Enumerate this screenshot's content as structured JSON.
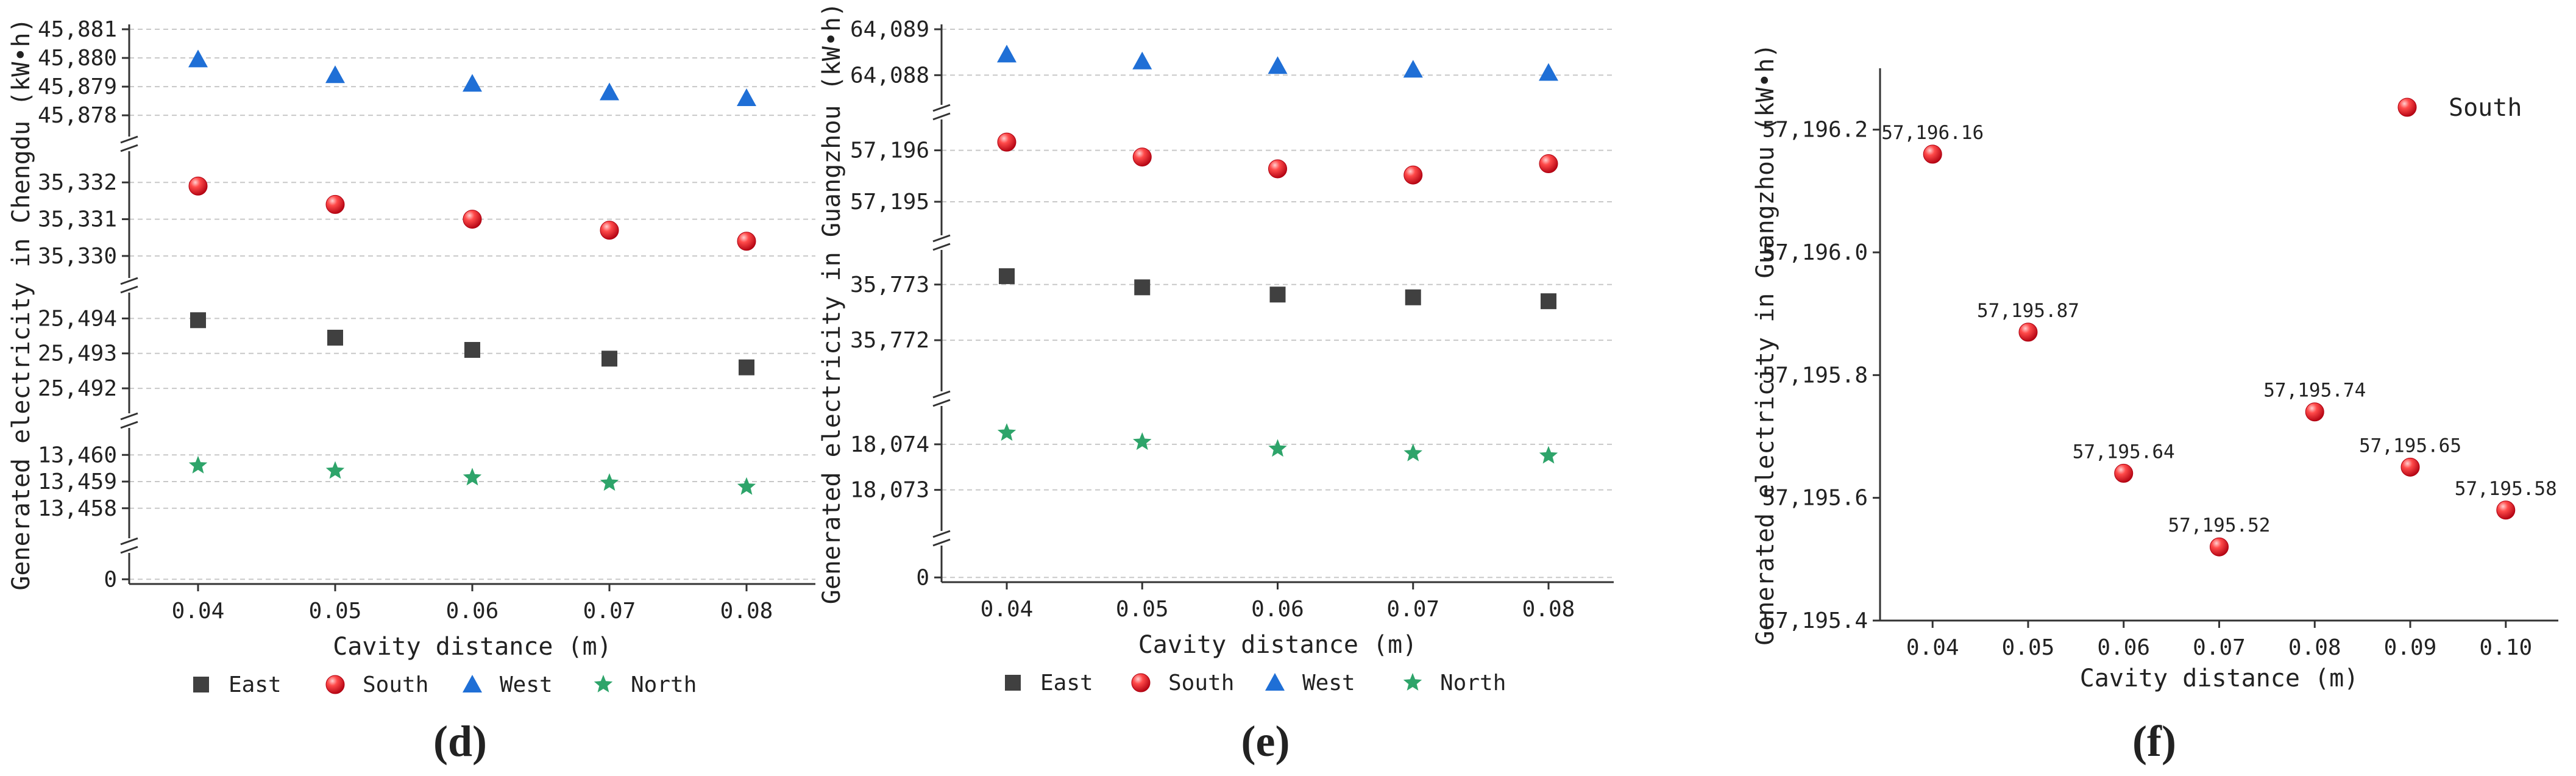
{
  "colors": {
    "east": "#404040",
    "south": "#e8192c",
    "west": "#1f6fd6",
    "north": "#2ea46a",
    "grid": "#c8c8c8",
    "axis": "#333333"
  },
  "legend": {
    "east": "East",
    "south": "South",
    "west": "West",
    "north": "North"
  },
  "chart_data": [
    {
      "panel": "(d)",
      "type": "scatter",
      "broken_axis": true,
      "xlabel": "Cavity distance (m)",
      "ylabel": "Generated electricity in Chengdu (kW•h)",
      "x_ticks": [
        "0.04",
        "0.05",
        "0.06",
        "0.07",
        "0.08"
      ],
      "x": [
        0.04,
        0.05,
        0.06,
        0.07,
        0.08
      ],
      "legend_position": "bottom",
      "series": [
        {
          "name": "East",
          "key": "east",
          "marker": "square",
          "values": [
            25493.95,
            25493.45,
            25493.1,
            25492.85,
            25492.6
          ]
        },
        {
          "name": "South",
          "key": "south",
          "marker": "circle",
          "values": [
            35331.9,
            35331.4,
            35331.0,
            35330.7,
            35330.4
          ]
        },
        {
          "name": "West",
          "key": "west",
          "marker": "triangle",
          "values": [
            45879.95,
            45879.4,
            45879.1,
            45878.8,
            45878.6
          ]
        },
        {
          "name": "North",
          "key": "north",
          "marker": "star",
          "values": [
            13459.6,
            13459.4,
            13459.15,
            13458.95,
            13458.8
          ]
        }
      ],
      "segments": [
        {
          "ticks": [
            "0"
          ],
          "tick_values": [
            0
          ],
          "range": [
            -0.3,
            0.4
          ]
        },
        {
          "ticks": [
            "13,458",
            "13,459",
            "13,460"
          ],
          "tick_values": [
            13458,
            13459,
            13460
          ],
          "range": [
            13457.4,
            13460.6
          ]
        },
        {
          "ticks": [
            "25,492",
            "25,493",
            "25,494"
          ],
          "tick_values": [
            25492,
            25493,
            25494
          ],
          "range": [
            25491.6,
            25494.6
          ]
        },
        {
          "ticks": [
            "35,330",
            "35,331",
            "35,332"
          ],
          "tick_values": [
            35330,
            35331,
            35332
          ],
          "range": [
            35329.7,
            35332.7
          ]
        },
        {
          "ticks": [
            "45,878",
            "45,879",
            "45,880",
            "45,881"
          ],
          "tick_values": [
            45878,
            45879,
            45880,
            45881
          ],
          "range": [
            45877.6,
            45881.0
          ]
        }
      ]
    },
    {
      "panel": "(e)",
      "type": "scatter",
      "broken_axis": true,
      "xlabel": "Cavity distance (m)",
      "ylabel": "Generated electricity in Guangzhou (kW•h)",
      "x_ticks": [
        "0.04",
        "0.05",
        "0.06",
        "0.07",
        "0.08"
      ],
      "x": [
        0.04,
        0.05,
        0.06,
        0.07,
        0.08
      ],
      "legend_position": "bottom",
      "series": [
        {
          "name": "East",
          "key": "east",
          "marker": "square",
          "values": [
            35773.15,
            35772.95,
            35772.82,
            35772.77,
            35772.7
          ]
        },
        {
          "name": "South",
          "key": "south",
          "marker": "circle",
          "values": [
            57196.16,
            57195.87,
            57195.64,
            57195.52,
            57195.74
          ]
        },
        {
          "name": "West",
          "key": "west",
          "marker": "triangle",
          "values": [
            64088.45,
            64088.3,
            64088.2,
            64088.12,
            64088.05
          ]
        },
        {
          "name": "North",
          "key": "north",
          "marker": "star",
          "values": [
            18074.25,
            18074.05,
            18073.9,
            18073.8,
            18073.75
          ]
        }
      ],
      "segments": [
        {
          "ticks": [
            "0"
          ],
          "tick_values": [
            0
          ],
          "range": [
            -0.3,
            0.4
          ]
        },
        {
          "ticks": [
            "18,073",
            "18,074"
          ],
          "tick_values": [
            18073,
            18074
          ],
          "range": [
            18072.3,
            18074.6
          ]
        },
        {
          "ticks": [
            "35,772",
            "35,773"
          ],
          "tick_values": [
            35772,
            35773
          ],
          "range": [
            35771.3,
            35773.6
          ]
        },
        {
          "ticks": [
            "57,195",
            "57,196"
          ],
          "tick_values": [
            57195,
            57196
          ],
          "range": [
            57194.3,
            57196.6
          ]
        },
        {
          "ticks": [
            "64,088",
            "64,089"
          ],
          "tick_values": [
            64088,
            64089
          ],
          "range": [
            64087.3,
            64089.0
          ]
        }
      ]
    },
    {
      "panel": "(f)",
      "type": "scatter",
      "xlabel": "Cavity distance (m)",
      "ylabel": "Generated electricity in Guangzhou (kW•h)",
      "x_ticks": [
        "0.04",
        "0.05",
        "0.06",
        "0.07",
        "0.08",
        "0.09",
        "0.10"
      ],
      "x": [
        0.04,
        0.05,
        0.06,
        0.07,
        0.08,
        0.09,
        0.1
      ],
      "xlim": [
        0.0345,
        0.1055
      ],
      "ylim": [
        57195.4,
        57196.3
      ],
      "y_ticks": [
        "57,195.4",
        "57,195.6",
        "57,195.8",
        "57,196.0",
        "57,196.2"
      ],
      "y_tick_values": [
        57195.4,
        57195.6,
        57195.8,
        57196.0,
        57196.2
      ],
      "legend_position": "top-right",
      "series": [
        {
          "name": "South",
          "key": "south",
          "marker": "circle",
          "values": [
            57196.16,
            57195.87,
            57195.64,
            57195.52,
            57195.74,
            57195.65,
            57195.58
          ],
          "labels": [
            "57,196.16",
            "57,195.87",
            "57,195.64",
            "57,195.52",
            "57,195.74",
            "57,195.65",
            "57,195.58"
          ]
        }
      ]
    }
  ]
}
